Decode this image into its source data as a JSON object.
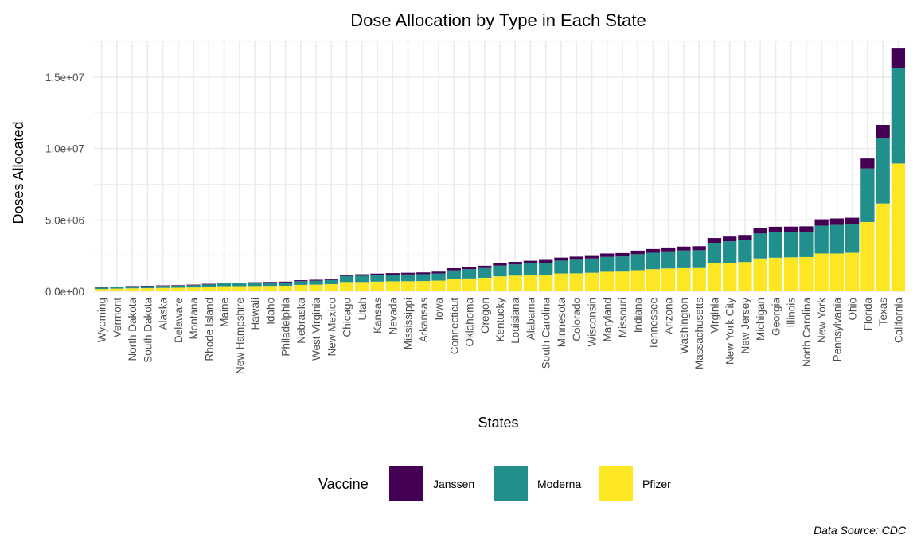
{
  "chart_data": {
    "type": "bar",
    "stacked": true,
    "title": "Dose Allocation by Type in Each State",
    "xlabel": "States",
    "ylabel": "Doses Allocated",
    "ylim": [
      0,
      17500000
    ],
    "y_ticks": [
      0,
      5000000,
      10000000,
      15000000
    ],
    "y_tick_labels": [
      "0.0e+00",
      "5.0e+06",
      "1.0e+07",
      "1.5e+07"
    ],
    "grid": true,
    "legend": {
      "title": "Vaccine",
      "placement": "bottom"
    },
    "caption": "Data Source: CDC",
    "categories": [
      "Wyoming",
      "Vermont",
      "North Dakota",
      "South Dakota",
      "Alaska",
      "Delaware",
      "Montana",
      "Rhode Island",
      "Maine",
      "New Hampshire",
      "Hawaii",
      "Idaho",
      "Philadelphia",
      "Nebraska",
      "West Virginia",
      "New Mexico",
      "Chicago",
      "Utah",
      "Kansas",
      "Nevada",
      "Mississippi",
      "Arkansas",
      "Iowa",
      "Connecticut",
      "Oklahoma",
      "Oregon",
      "Kentucky",
      "Louisiana",
      "Alabama",
      "South Carolina",
      "Minnesota",
      "Colorado",
      "Wisconsin",
      "Maryland",
      "Missouri",
      "Indiana",
      "Tennessee",
      "Arizona",
      "Washington",
      "Massachusetts",
      "Virginia",
      "New York City",
      "New Jersey",
      "Michigan",
      "Georgia",
      "Illinois",
      "North Carolina",
      "New York",
      "Pennsylvania",
      "Ohio",
      "Florida",
      "Texas",
      "California"
    ],
    "series": [
      {
        "name": "Pfizer",
        "color": "#FDE725",
        "values": [
          160000,
          190000,
          210000,
          220000,
          240000,
          250000,
          270000,
          300000,
          360000,
          360000,
          370000,
          380000,
          390000,
          450000,
          470000,
          500000,
          650000,
          650000,
          680000,
          700000,
          710000,
          720000,
          750000,
          870000,
          900000,
          950000,
          1050000,
          1100000,
          1130000,
          1150000,
          1250000,
          1260000,
          1300000,
          1370000,
          1380000,
          1480000,
          1550000,
          1600000,
          1620000,
          1630000,
          1950000,
          2000000,
          2050000,
          2300000,
          2350000,
          2380000,
          2400000,
          2650000,
          2650000,
          2700000,
          4850000,
          6150000,
          8950000
        ]
      },
      {
        "name": "Moderna",
        "color": "#21908C",
        "values": [
          100000,
          120000,
          130000,
          140000,
          140000,
          150000,
          160000,
          180000,
          200000,
          200000,
          210000,
          220000,
          230000,
          260000,
          270000,
          290000,
          420000,
          440000,
          450000,
          460000,
          470000,
          480000,
          500000,
          600000,
          650000,
          680000,
          750000,
          780000,
          820000,
          850000,
          900000,
          950000,
          1000000,
          1040000,
          1060000,
          1120000,
          1150000,
          1200000,
          1240000,
          1250000,
          1450000,
          1500000,
          1550000,
          1750000,
          1780000,
          1760000,
          1760000,
          1950000,
          2000000,
          2000000,
          3750000,
          4600000,
          6700000
        ]
      },
      {
        "name": "Janssen",
        "color": "#440154",
        "values": [
          20000,
          25000,
          30000,
          30000,
          35000,
          35000,
          40000,
          45000,
          50000,
          50000,
          55000,
          55000,
          60000,
          65000,
          70000,
          75000,
          100000,
          105000,
          110000,
          115000,
          120000,
          125000,
          130000,
          145000,
          150000,
          160000,
          170000,
          180000,
          190000,
          200000,
          210000,
          220000,
          230000,
          240000,
          240000,
          250000,
          260000,
          270000,
          275000,
          280000,
          330000,
          335000,
          345000,
          380000,
          390000,
          390000,
          390000,
          440000,
          450000,
          450000,
          700000,
          900000,
          1400000
        ]
      }
    ]
  }
}
